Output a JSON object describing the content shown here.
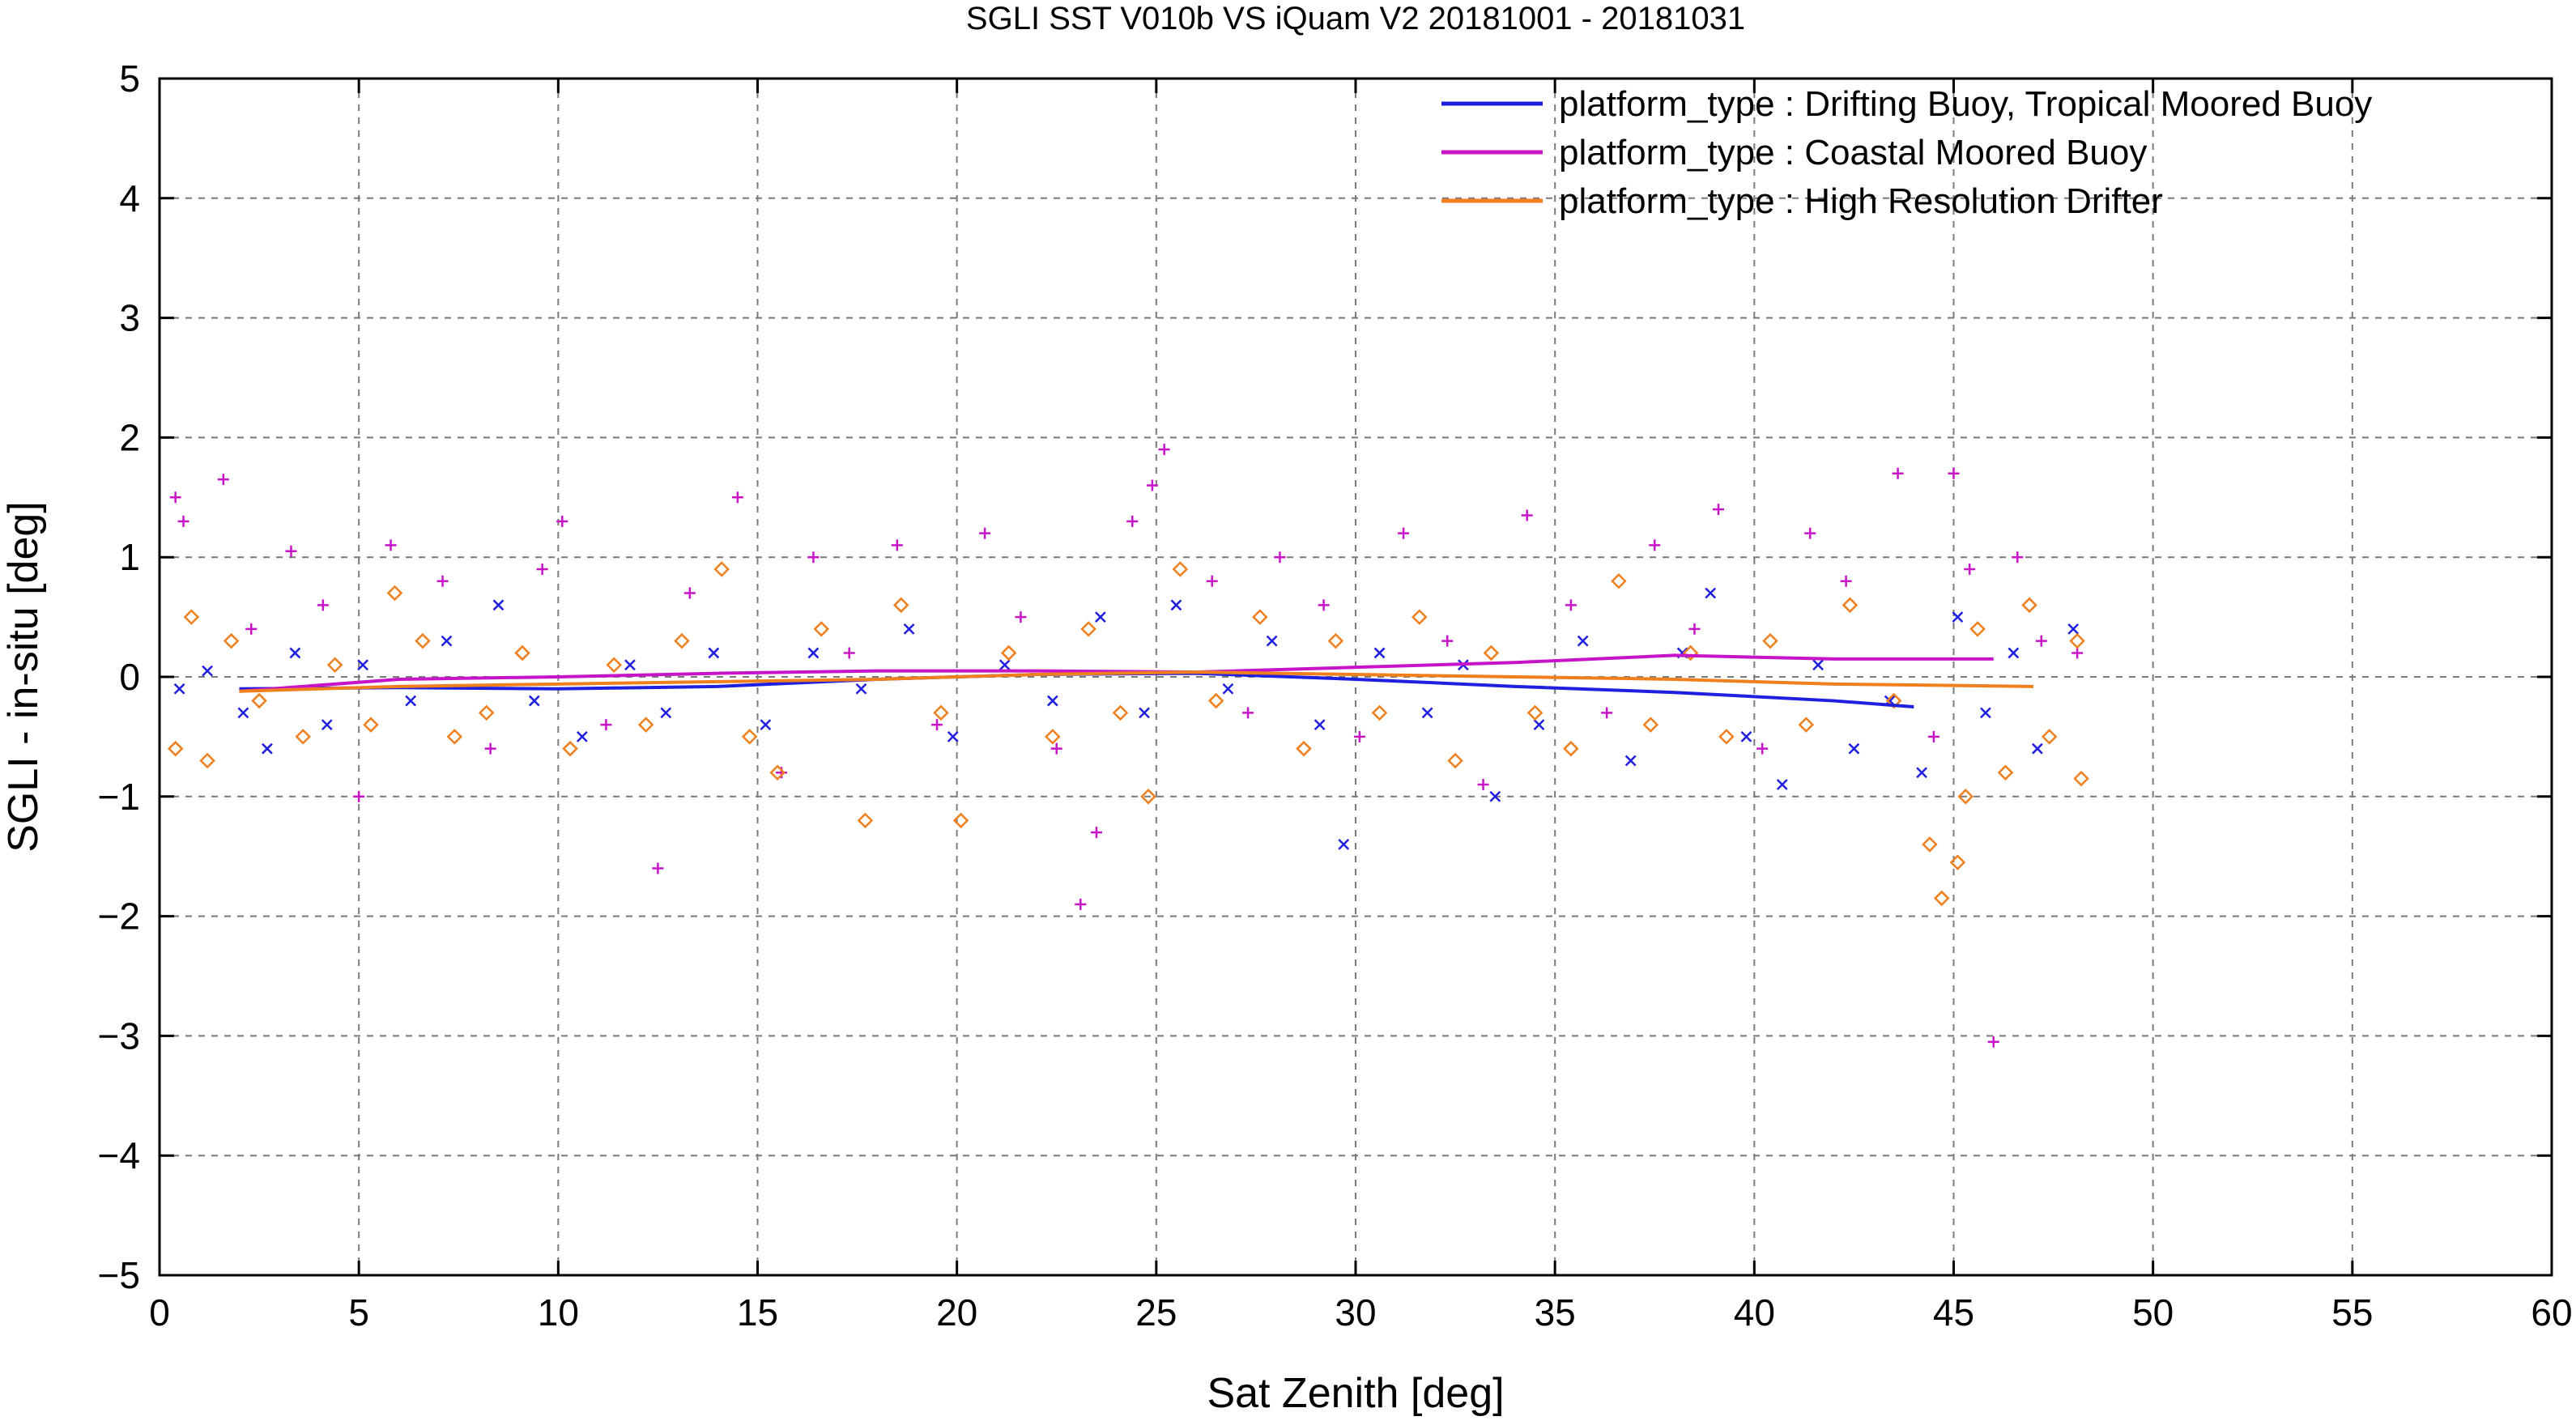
{
  "chart_data": {
    "type": "scatter",
    "title": "SGLI SST V010b VS iQuam V2 20181001 - 20181031",
    "xlabel": "Sat Zenith [deg]",
    "ylabel": "SGLI - in-situ [deg]",
    "xlim": [
      0,
      60
    ],
    "ylim": [
      -5,
      5
    ],
    "xticks": [
      0,
      5,
      10,
      15,
      20,
      25,
      30,
      35,
      40,
      45,
      50,
      55,
      60
    ],
    "yticks": [
      -5,
      -4,
      -3,
      -2,
      -1,
      0,
      1,
      2,
      3,
      4,
      5
    ],
    "xtick_labels": [
      "0",
      "5",
      "10",
      "15",
      "20",
      "25",
      "30",
      "35",
      "40",
      "45",
      "50",
      "55",
      "60"
    ],
    "ytick_labels": [
      "−5",
      "−4",
      "−3",
      "−2",
      "−1",
      "0",
      "1",
      "2",
      "3",
      "4",
      "5"
    ],
    "grid": true,
    "legend_position": "top-right",
    "series": [
      {
        "name": "platform_type : Drifting Buoy, Tropical Moored Buoy",
        "color": "#1f1fe0",
        "marker": "x",
        "mean_line": {
          "x": [
            2,
            6,
            10,
            14,
            18,
            22,
            26,
            30,
            34,
            38,
            42,
            44
          ],
          "y": [
            -0.1,
            -0.09,
            -0.1,
            -0.08,
            -0.02,
            0.02,
            0.03,
            -0.02,
            -0.08,
            -0.13,
            -0.2,
            -0.25
          ]
        },
        "points": [
          [
            0.5,
            -0.1
          ],
          [
            1.2,
            0.05
          ],
          [
            2.1,
            -0.3
          ],
          [
            2.7,
            -0.6
          ],
          [
            3.4,
            0.2
          ],
          [
            4.2,
            -0.4
          ],
          [
            5.1,
            0.1
          ],
          [
            6.3,
            -0.2
          ],
          [
            7.2,
            0.3
          ],
          [
            8.5,
            0.6
          ],
          [
            9.4,
            -0.2
          ],
          [
            10.6,
            -0.5
          ],
          [
            11.8,
            0.1
          ],
          [
            12.7,
            -0.3
          ],
          [
            13.9,
            0.2
          ],
          [
            15.2,
            -0.4
          ],
          [
            16.4,
            0.2
          ],
          [
            17.6,
            -0.1
          ],
          [
            18.8,
            0.4
          ],
          [
            19.9,
            -0.5
          ],
          [
            21.2,
            0.1
          ],
          [
            22.4,
            -0.2
          ],
          [
            23.6,
            0.5
          ],
          [
            24.7,
            -0.3
          ],
          [
            25.5,
            0.6
          ],
          [
            26.8,
            -0.1
          ],
          [
            27.9,
            0.3
          ],
          [
            29.1,
            -0.4
          ],
          [
            29.7,
            -1.4
          ],
          [
            30.6,
            0.2
          ],
          [
            31.8,
            -0.3
          ],
          [
            32.7,
            0.1
          ],
          [
            33.5,
            -1.0
          ],
          [
            34.6,
            -0.4
          ],
          [
            35.7,
            0.3
          ],
          [
            36.9,
            -0.7
          ],
          [
            38.2,
            0.2
          ],
          [
            38.9,
            0.7
          ],
          [
            39.8,
            -0.5
          ],
          [
            40.7,
            -0.9
          ],
          [
            41.6,
            0.1
          ],
          [
            42.5,
            -0.6
          ],
          [
            43.4,
            -0.2
          ],
          [
            44.2,
            -0.8
          ],
          [
            45.1,
            0.5
          ],
          [
            45.8,
            -0.3
          ],
          [
            46.5,
            0.2
          ],
          [
            47.1,
            -0.6
          ],
          [
            48.0,
            0.4
          ]
        ]
      },
      {
        "name": "platform_type : Coastal Moored Buoy",
        "color": "#c814c8",
        "marker": "+",
        "mean_line": {
          "x": [
            2,
            6,
            10,
            14,
            18,
            22,
            26,
            30,
            34,
            38,
            42,
            46
          ],
          "y": [
            -0.12,
            -0.02,
            0.0,
            0.03,
            0.05,
            0.05,
            0.04,
            0.08,
            0.12,
            0.18,
            0.15,
            0.15
          ]
        },
        "points": [
          [
            0.4,
            1.5
          ],
          [
            0.6,
            1.3
          ],
          [
            1.6,
            1.65
          ],
          [
            2.3,
            0.4
          ],
          [
            3.3,
            1.05
          ],
          [
            4.1,
            0.6
          ],
          [
            5.0,
            -1.0
          ],
          [
            5.8,
            1.1
          ],
          [
            7.1,
            0.8
          ],
          [
            8.3,
            -0.6
          ],
          [
            9.6,
            0.9
          ],
          [
            10.1,
            1.3
          ],
          [
            11.2,
            -0.4
          ],
          [
            12.5,
            -1.6
          ],
          [
            13.3,
            0.7
          ],
          [
            14.5,
            1.5
          ],
          [
            15.6,
            -0.8
          ],
          [
            16.4,
            1.0
          ],
          [
            17.3,
            0.2
          ],
          [
            18.5,
            1.1
          ],
          [
            19.5,
            -0.4
          ],
          [
            20.7,
            1.2
          ],
          [
            21.6,
            0.5
          ],
          [
            22.5,
            -0.6
          ],
          [
            23.1,
            -1.9
          ],
          [
            23.5,
            -1.3
          ],
          [
            24.4,
            1.3
          ],
          [
            24.9,
            1.6
          ],
          [
            25.2,
            1.9
          ],
          [
            26.4,
            0.8
          ],
          [
            27.3,
            -0.3
          ],
          [
            28.1,
            1.0
          ],
          [
            29.2,
            0.6
          ],
          [
            30.1,
            -0.5
          ],
          [
            31.2,
            1.2
          ],
          [
            32.3,
            0.3
          ],
          [
            33.2,
            -0.9
          ],
          [
            34.3,
            1.35
          ],
          [
            35.4,
            0.6
          ],
          [
            36.3,
            -0.3
          ],
          [
            37.5,
            1.1
          ],
          [
            38.5,
            0.4
          ],
          [
            39.1,
            1.4
          ],
          [
            40.2,
            -0.6
          ],
          [
            41.4,
            1.2
          ],
          [
            42.3,
            0.8
          ],
          [
            43.6,
            1.7
          ],
          [
            44.5,
            -0.5
          ],
          [
            45.0,
            1.7
          ],
          [
            45.4,
            0.9
          ],
          [
            46.0,
            -3.05
          ],
          [
            46.6,
            1.0
          ],
          [
            47.2,
            0.3
          ],
          [
            48.1,
            0.2
          ]
        ]
      },
      {
        "name": "platform_type : High Resolution Drifter",
        "color": "#f07f1e",
        "marker": "diamond",
        "mean_line": {
          "x": [
            2,
            6,
            10,
            14,
            18,
            22,
            26,
            30,
            34,
            38,
            42,
            47
          ],
          "y": [
            -0.12,
            -0.08,
            -0.06,
            -0.04,
            -0.02,
            0.02,
            0.04,
            0.02,
            0.0,
            -0.02,
            -0.06,
            -0.08
          ]
        },
        "points": [
          [
            0.4,
            -0.6
          ],
          [
            0.8,
            0.5
          ],
          [
            1.2,
            -0.7
          ],
          [
            1.8,
            0.3
          ],
          [
            2.5,
            -0.2
          ],
          [
            3.6,
            -0.5
          ],
          [
            4.4,
            0.1
          ],
          [
            5.3,
            -0.4
          ],
          [
            5.9,
            0.7
          ],
          [
            6.6,
            0.3
          ],
          [
            7.4,
            -0.5
          ],
          [
            8.2,
            -0.3
          ],
          [
            9.1,
            0.2
          ],
          [
            10.3,
            -0.6
          ],
          [
            11.4,
            0.1
          ],
          [
            12.2,
            -0.4
          ],
          [
            13.1,
            0.3
          ],
          [
            14.1,
            0.9
          ],
          [
            14.8,
            -0.5
          ],
          [
            15.5,
            -0.8
          ],
          [
            16.6,
            0.4
          ],
          [
            17.7,
            -1.2
          ],
          [
            18.6,
            0.6
          ],
          [
            19.6,
            -0.3
          ],
          [
            20.1,
            -1.2
          ],
          [
            21.3,
            0.2
          ],
          [
            22.4,
            -0.5
          ],
          [
            23.3,
            0.4
          ],
          [
            24.1,
            -0.3
          ],
          [
            24.8,
            -1.0
          ],
          [
            25.6,
            0.9
          ],
          [
            26.5,
            -0.2
          ],
          [
            27.6,
            0.5
          ],
          [
            28.7,
            -0.6
          ],
          [
            29.5,
            0.3
          ],
          [
            30.6,
            -0.3
          ],
          [
            31.6,
            0.5
          ],
          [
            32.5,
            -0.7
          ],
          [
            33.4,
            0.2
          ],
          [
            34.5,
            -0.3
          ],
          [
            35.4,
            -0.6
          ],
          [
            36.6,
            0.8
          ],
          [
            37.4,
            -0.4
          ],
          [
            38.4,
            0.2
          ],
          [
            39.3,
            -0.5
          ],
          [
            40.4,
            0.3
          ],
          [
            41.3,
            -0.4
          ],
          [
            42.4,
            0.6
          ],
          [
            43.5,
            -0.2
          ],
          [
            44.4,
            -1.4
          ],
          [
            44.7,
            -1.85
          ],
          [
            45.1,
            -1.55
          ],
          [
            45.3,
            -1.0
          ],
          [
            45.6,
            0.4
          ],
          [
            46.3,
            -0.8
          ],
          [
            46.9,
            0.6
          ],
          [
            47.4,
            -0.5
          ],
          [
            48.2,
            -0.85
          ],
          [
            48.1,
            0.3
          ]
        ]
      }
    ]
  }
}
